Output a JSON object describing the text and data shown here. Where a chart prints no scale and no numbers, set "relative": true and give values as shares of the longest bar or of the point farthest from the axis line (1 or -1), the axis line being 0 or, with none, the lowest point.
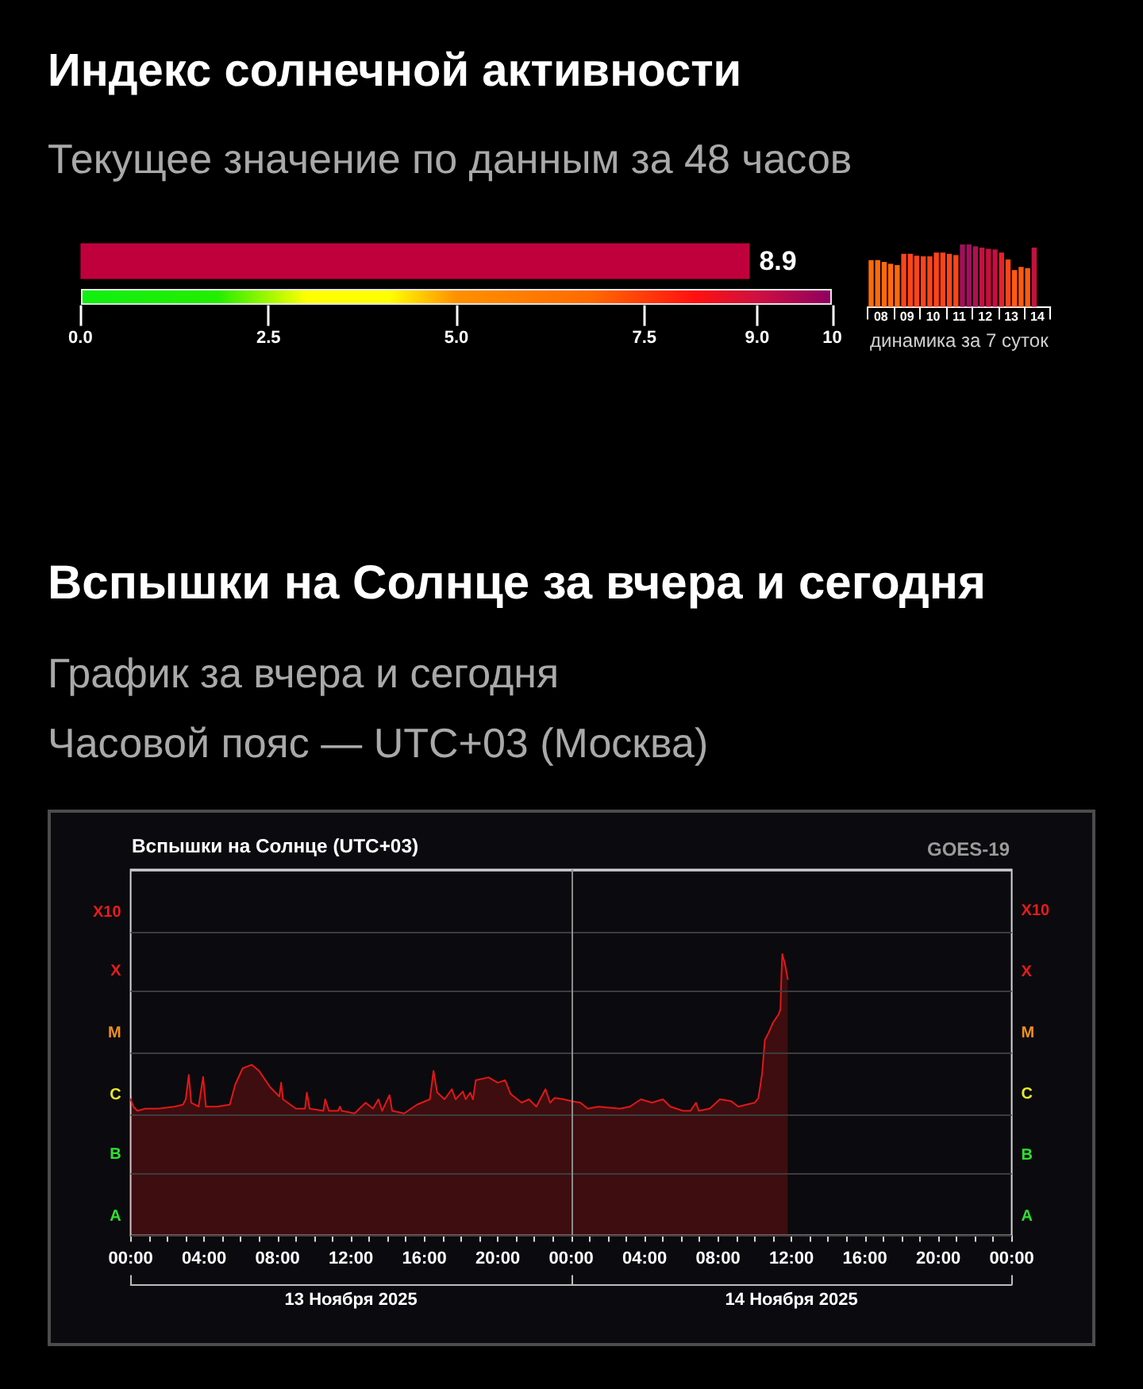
{
  "chart_data": [
    {
      "type": "bar",
      "title": "Индекс солнечной активности",
      "subtitle": "Текущее значение по данным за 48 часов",
      "orientation": "horizontal",
      "categories": [
        null
      ],
      "values": [
        8.9
      ],
      "color": "#c0003c",
      "xlim": [
        0,
        10
      ],
      "xticks": [
        {
          "value": 0,
          "label": "0.0"
        },
        {
          "value": 2.5,
          "label": "2.5"
        },
        {
          "value": 5,
          "label": "5.0"
        },
        {
          "value": 7.5,
          "label": "7.5"
        },
        {
          "value": 9,
          "label": "9.0"
        },
        10
      ],
      "data_labels": true
    },
    {
      "type": "bar",
      "relative": true,
      "x": [
        8.125,
        8.375,
        8.625,
        8.875,
        9.125,
        9.375,
        9.625,
        9.875,
        10.125,
        10.375,
        10.625,
        10.875,
        11.125,
        11.375,
        11.625,
        11.875,
        12.125,
        12.375,
        12.625,
        12.875,
        13.125,
        13.375,
        13.625,
        13.875,
        14.125,
        14.375
      ],
      "values": [
        0.75,
        0.75,
        0.72,
        0.69,
        0.67,
        0.85,
        0.85,
        0.82,
        0.81,
        0.81,
        0.87,
        0.87,
        0.85,
        0.83,
        1,
        1,
        0.97,
        0.95,
        0.93,
        0.92,
        0.87,
        0.76,
        0.59,
        0.64,
        0.62,
        0.95
      ],
      "colors": [
        "#ff6a0a",
        "#ff6a0a",
        "#ff6a0a",
        "#ff6a0a",
        "#ff6a0a",
        "#ff4418",
        "#ff4418",
        "#ff4418",
        "#ff4418",
        "#ff4418",
        "#ff4418",
        "#ff4418",
        "#ff4418",
        "#ff4418",
        "#a0105a",
        "#a0105a",
        "#b01050",
        "#c41040",
        "#c41040",
        "#c41040",
        "#e8202a",
        "#ff4418",
        "#ff5a12",
        "#ff5a12",
        "#ff5a12",
        "#c41040"
      ],
      "xlim": [
        8,
        15
      ],
      "xticks": [
        {
          "value": 8,
          "label": null
        },
        {
          "value": 8.5,
          "label": "08"
        },
        {
          "value": 9,
          "label": null
        },
        {
          "value": 9.5,
          "label": "09"
        },
        {
          "value": 10,
          "label": null
        },
        {
          "value": 10.5,
          "label": "10"
        },
        {
          "value": 11,
          "label": null
        },
        {
          "value": 11.5,
          "label": "11"
        },
        {
          "value": 12,
          "label": null
        },
        {
          "value": 12.5,
          "label": "12"
        },
        {
          "value": 13,
          "label": null
        },
        {
          "value": 13.5,
          "label": "13"
        },
        {
          "value": 14,
          "label": null
        },
        {
          "value": 14.5,
          "label": "14"
        },
        {
          "value": 15,
          "label": null
        }
      ],
      "xlabel": "динамика за 7 суток"
    },
    {
      "type": "area",
      "title": "Вспышки на Солнце за вчера и сегодня",
      "subtitle": "График за вчера и сегодня",
      "annotations": [
        "Часовой пояс — UTC+03 (Москва)",
        "Вспышки на Солнце (UTC+03)",
        "GOES-19"
      ],
      "color": "#e01818",
      "relative": true,
      "x": [
        "2025-11-13T00:00",
        "2025-11-13T00:09",
        "2025-11-13T00:22",
        "2025-11-13T00:48",
        "2025-11-13T01:30",
        "2025-11-13T02:24",
        "2025-11-13T02:51",
        "2025-11-13T03:00",
        "2025-11-13T03:10",
        "2025-11-13T03:18",
        "2025-11-13T03:42",
        "2025-11-13T03:57",
        "2025-11-13T04:06",
        "2025-11-13T04:42",
        "2025-11-13T05:24",
        "2025-11-13T05:42",
        "2025-11-13T06:06",
        "2025-11-13T06:36",
        "2025-11-13T07:00",
        "2025-11-13T07:36",
        "2025-11-13T08:06",
        "2025-11-13T08:12",
        "2025-11-13T08:18",
        "2025-11-13T09:00",
        "2025-11-13T09:30",
        "2025-11-13T09:36",
        "2025-11-13T09:45",
        "2025-11-13T10:30",
        "2025-11-13T10:36",
        "2025-11-13T10:48",
        "2025-11-13T11:18",
        "2025-11-13T11:24",
        "2025-11-13T11:30",
        "2025-11-13T12:12",
        "2025-11-13T12:48",
        "2025-11-13T13:12",
        "2025-11-13T13:30",
        "2025-11-13T13:42",
        "2025-11-13T14:06",
        "2025-11-13T14:15",
        "2025-11-13T14:54",
        "2025-11-13T15:36",
        "2025-11-13T16:18",
        "2025-11-13T16:30",
        "2025-11-13T16:42",
        "2025-11-13T17:06",
        "2025-11-13T17:30",
        "2025-11-13T17:42",
        "2025-11-13T18:06",
        "2025-11-13T18:15",
        "2025-11-13T18:30",
        "2025-11-13T18:39",
        "2025-11-13T18:48",
        "2025-11-13T19:30",
        "2025-11-13T20:00",
        "2025-11-13T20:24",
        "2025-11-13T20:42",
        "2025-11-13T21:18",
        "2025-11-13T21:42",
        "2025-11-13T22:06",
        "2025-11-13T22:36",
        "2025-11-13T22:51",
        "2025-11-13T23:06",
        "2025-11-13T23:36",
        "2025-11-14T00:00",
        "2025-11-14T00:30",
        "2025-11-14T00:54",
        "2025-11-14T01:30",
        "2025-11-14T02:39",
        "2025-11-14T03:12",
        "2025-11-14T03:48",
        "2025-11-14T04:24",
        "2025-11-14T05:00",
        "2025-11-14T05:24",
        "2025-11-14T06:06",
        "2025-11-14T06:30",
        "2025-11-14T06:48",
        "2025-11-14T06:57",
        "2025-11-14T07:33",
        "2025-11-14T08:06",
        "2025-11-14T08:42",
        "2025-11-14T09:06",
        "2025-11-14T10:00",
        "2025-11-14T10:12",
        "2025-11-14T10:24",
        "2025-11-14T10:33",
        "2025-11-14T10:45",
        "2025-11-14T11:00",
        "2025-11-14T11:18",
        "2025-11-14T11:24",
        "2025-11-14T11:27",
        "2025-11-14T11:30",
        "2025-11-14T11:39",
        "2025-11-14T11:48"
      ],
      "values": [
        0.484,
        0.458,
        0.443,
        0.451,
        0.451,
        0.458,
        0.465,
        0.484,
        0.571,
        0.472,
        0.458,
        0.564,
        0.458,
        0.458,
        0.465,
        0.537,
        0.594,
        0.607,
        0.585,
        0.527,
        0.494,
        0.543,
        0.484,
        0.451,
        0.451,
        0.508,
        0.451,
        0.443,
        0.484,
        0.443,
        0.443,
        0.458,
        0.443,
        0.434,
        0.472,
        0.451,
        0.484,
        0.443,
        0.499,
        0.443,
        0.434,
        0.465,
        0.484,
        0.585,
        0.508,
        0.484,
        0.52,
        0.484,
        0.512,
        0.484,
        0.508,
        0.484,
        0.552,
        0.562,
        0.543,
        0.552,
        0.503,
        0.472,
        0.484,
        0.458,
        0.52,
        0.472,
        0.489,
        0.484,
        0.478,
        0.472,
        0.451,
        0.458,
        0.451,
        0.458,
        0.484,
        0.472,
        0.484,
        0.458,
        0.443,
        0.443,
        0.472,
        0.443,
        0.451,
        0.484,
        0.478,
        0.458,
        0.472,
        0.489,
        0.575,
        0.695,
        0.72,
        0.757,
        0.786,
        0.804,
        0.917,
        1,
        0.964,
        0.911
      ],
      "xlim": [
        "2025-11-13T00:00",
        "2025-11-15T00:00"
      ],
      "xticks": [
        {
          "value": "2025-11-13T00:00",
          "label": "00:00"
        },
        {
          "value": "2025-11-13T01:00",
          "label": null
        },
        {
          "value": "2025-11-13T02:00",
          "label": null
        },
        {
          "value": "2025-11-13T03:00",
          "label": null
        },
        {
          "value": "2025-11-13T04:00",
          "label": "04:00"
        },
        {
          "value": "2025-11-13T05:00",
          "label": null
        },
        {
          "value": "2025-11-13T06:00",
          "label": null
        },
        {
          "value": "2025-11-13T07:00",
          "label": null
        },
        {
          "value": "2025-11-13T08:00",
          "label": "08:00"
        },
        {
          "value": "2025-11-13T09:00",
          "label": null
        },
        {
          "value": "2025-11-13T10:00",
          "label": null
        },
        {
          "value": "2025-11-13T11:00",
          "label": null
        },
        {
          "value": "2025-11-13T12:00",
          "label": "12:00"
        },
        {
          "value": "2025-11-13T13:00",
          "label": null
        },
        {
          "value": "2025-11-13T14:00",
          "label": null
        },
        {
          "value": "2025-11-13T15:00",
          "label": null
        },
        {
          "value": "2025-11-13T16:00",
          "label": "16:00"
        },
        {
          "value": "2025-11-13T17:00",
          "label": null
        },
        {
          "value": "2025-11-13T18:00",
          "label": null
        },
        {
          "value": "2025-11-13T19:00",
          "label": null
        },
        {
          "value": "2025-11-13T20:00",
          "label": "20:00"
        },
        {
          "value": "2025-11-13T21:00",
          "label": null
        },
        {
          "value": "2025-11-13T22:00",
          "label": null
        },
        {
          "value": "2025-11-13T23:00",
          "label": null
        },
        {
          "value": "2025-11-14T00:00",
          "label": "00:00"
        },
        {
          "value": "2025-11-14T01:00",
          "label": null
        },
        {
          "value": "2025-11-14T02:00",
          "label": null
        },
        {
          "value": "2025-11-14T03:00",
          "label": null
        },
        {
          "value": "2025-11-14T04:00",
          "label": "04:00"
        },
        {
          "value": "2025-11-14T05:00",
          "label": null
        },
        {
          "value": "2025-11-14T06:00",
          "label": null
        },
        {
          "value": "2025-11-14T07:00",
          "label": null
        },
        {
          "value": "2025-11-14T08:00",
          "label": "08:00"
        },
        {
          "value": "2025-11-14T09:00",
          "label": null
        },
        {
          "value": "2025-11-14T10:00",
          "label": null
        },
        {
          "value": "2025-11-14T11:00",
          "label": null
        },
        {
          "value": "2025-11-14T12:00",
          "label": "12:00"
        },
        {
          "value": "2025-11-14T13:00",
          "label": null
        },
        {
          "value": "2025-11-14T14:00",
          "label": null
        },
        {
          "value": "2025-11-14T15:00",
          "label": null
        },
        {
          "value": "2025-11-14T16:00",
          "label": "16:00"
        },
        {
          "value": "2025-11-14T17:00",
          "label": null
        },
        {
          "value": "2025-11-14T18:00",
          "label": null
        },
        {
          "value": "2025-11-14T19:00",
          "label": null
        },
        {
          "value": "2025-11-14T20:00",
          "label": "20:00"
        },
        {
          "value": "2025-11-14T21:00",
          "label": null
        },
        {
          "value": "2025-11-14T22:00",
          "label": null
        },
        {
          "value": "2025-11-14T23:00",
          "label": null
        },
        {
          "value": "2025-11-15T00:00",
          "label": "00:00"
        }
      ],
      "x2lim": [
        "2025-11-13T00:00",
        "2025-11-15T00:00"
      ],
      "x2ticks": [
        {
          "value": "2025-11-13T00:00",
          "label": null
        },
        {
          "value": "2025-11-13T12:00",
          "label": "13 Ноября 2025"
        },
        {
          "value": "2025-11-14T00:00",
          "label": null
        },
        {
          "value": "2025-11-14T12:00",
          "label": "14 Ноября 2025"
        },
        {
          "value": "2025-11-15T00:00",
          "label": null
        }
      ],
      "ref_lines": [
        {
          "axis": "y",
          "value": 0,
          "label": "A",
          "color": "#3c3c3c"
        },
        {
          "axis": "y",
          "value": 0.217,
          "label": "B",
          "color": "#3c3c3c"
        },
        {
          "axis": "y",
          "value": 0.434,
          "label": "C",
          "color": "#3c3c3c"
        },
        {
          "axis": "y",
          "value": 0.65,
          "label": "M",
          "color": "#3c3c3c"
        },
        {
          "axis": "y",
          "value": 0.867,
          "label": "X",
          "color": "#3c3c3c"
        },
        {
          "axis": "y",
          "value": 1.084,
          "label": "X10",
          "color": "#3c3c3c"
        },
        {
          "axis": "y",
          "value": 1.301,
          "color": "#bdbdbd"
        },
        {
          "axis": "x",
          "value": "2025-11-14T00:00",
          "color": "#8c8c8c"
        }
      ]
    }
  ]
}
